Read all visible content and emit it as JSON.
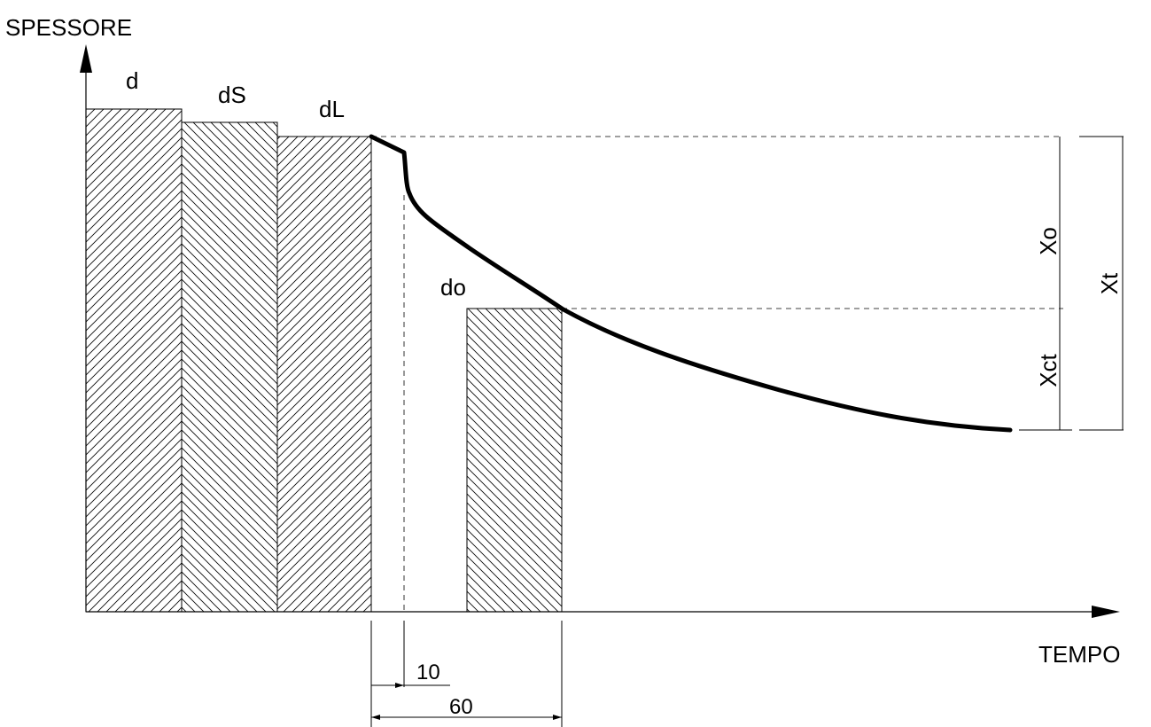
{
  "axes": {
    "y_title": "SPESSORE",
    "x_title": "TEMPO"
  },
  "blocks": {
    "d": "d",
    "dS": "dS",
    "dL": "dL",
    "do": "do"
  },
  "dimensions": {
    "xo": "Xo",
    "xct": "Xct",
    "xt": "Xt",
    "t10": "10",
    "t60": "60"
  },
  "colors": {
    "ink": "#000000",
    "background": "#ffffff"
  }
}
